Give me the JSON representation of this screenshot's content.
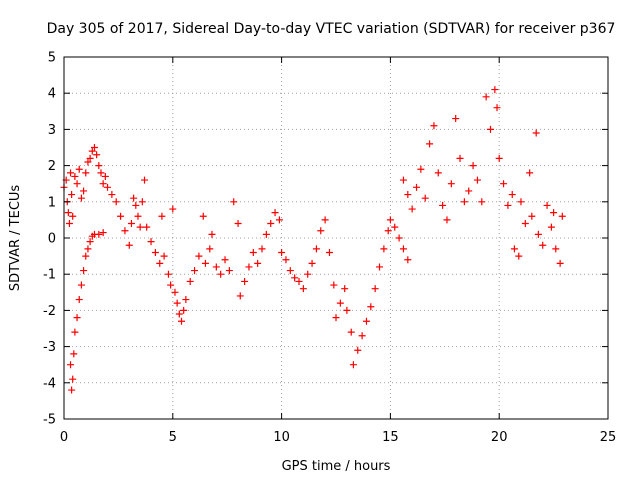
{
  "chart_data": {
    "type": "scatter",
    "title": "Day 305 of 2017, Sidereal Day-to-day VTEC variation (SDTVAR) for receiver p367",
    "xlabel": "GPS time / hours",
    "ylabel": "SDTVAR / TECUs",
    "xlim": [
      0,
      25
    ],
    "ylim": [
      -5,
      5
    ],
    "x_ticks": [
      "0",
      "5",
      "10",
      "15",
      "20",
      "25"
    ],
    "y_ticks": [
      "-5",
      "-4",
      "-3",
      "-2",
      "-1",
      "0",
      "1",
      "2",
      "3",
      "4",
      "5"
    ],
    "grid": true,
    "marker": "+",
    "color": "#ff0000",
    "series": [
      {
        "name": "p367 SDTVAR",
        "points": [
          [
            0.0,
            1.4
          ],
          [
            0.1,
            1.6
          ],
          [
            0.15,
            1.0
          ],
          [
            0.2,
            0.7
          ],
          [
            0.25,
            0.4
          ],
          [
            0.3,
            1.8
          ],
          [
            0.35,
            1.2
          ],
          [
            0.4,
            0.6
          ],
          [
            0.3,
            -3.5
          ],
          [
            0.35,
            -4.2
          ],
          [
            0.4,
            -3.9
          ],
          [
            0.45,
            -3.2
          ],
          [
            0.5,
            -2.6
          ],
          [
            0.6,
            -2.2
          ],
          [
            0.7,
            -1.7
          ],
          [
            0.8,
            -1.3
          ],
          [
            0.9,
            -0.9
          ],
          [
            1.0,
            -0.5
          ],
          [
            1.1,
            -0.3
          ],
          [
            1.2,
            -0.1
          ],
          [
            1.3,
            0.05
          ],
          [
            1.4,
            0.1
          ],
          [
            1.6,
            0.1
          ],
          [
            1.8,
            0.15
          ],
          [
            0.5,
            1.7
          ],
          [
            0.6,
            1.5
          ],
          [
            0.7,
            1.9
          ],
          [
            0.8,
            1.1
          ],
          [
            0.9,
            1.3
          ],
          [
            1.0,
            1.8
          ],
          [
            1.1,
            2.1
          ],
          [
            1.2,
            2.2
          ],
          [
            1.3,
            2.4
          ],
          [
            1.4,
            2.5
          ],
          [
            1.5,
            2.3
          ],
          [
            1.6,
            2.0
          ],
          [
            1.7,
            1.8
          ],
          [
            1.8,
            1.5
          ],
          [
            1.9,
            1.7
          ],
          [
            2.0,
            1.4
          ],
          [
            2.2,
            1.2
          ],
          [
            2.4,
            1.0
          ],
          [
            2.6,
            0.6
          ],
          [
            2.8,
            0.2
          ],
          [
            3.0,
            -0.2
          ],
          [
            3.1,
            0.4
          ],
          [
            3.2,
            1.1
          ],
          [
            3.3,
            0.9
          ],
          [
            3.4,
            0.6
          ],
          [
            3.5,
            0.3
          ],
          [
            3.6,
            1.0
          ],
          [
            3.7,
            1.6
          ],
          [
            3.8,
            0.3
          ],
          [
            4.0,
            -0.1
          ],
          [
            4.2,
            -0.4
          ],
          [
            4.4,
            -0.7
          ],
          [
            4.5,
            0.6
          ],
          [
            4.6,
            -0.5
          ],
          [
            4.8,
            -1.0
          ],
          [
            4.9,
            -1.3
          ],
          [
            5.0,
            0.8
          ],
          [
            5.1,
            -1.5
          ],
          [
            5.2,
            -1.8
          ],
          [
            5.3,
            -2.1
          ],
          [
            5.4,
            -2.3
          ],
          [
            5.5,
            -2.0
          ],
          [
            5.6,
            -1.7
          ],
          [
            5.8,
            -1.2
          ],
          [
            6.0,
            -0.9
          ],
          [
            6.2,
            -0.5
          ],
          [
            6.4,
            0.6
          ],
          [
            6.5,
            -0.7
          ],
          [
            6.7,
            -0.3
          ],
          [
            6.8,
            0.1
          ],
          [
            7.0,
            -0.8
          ],
          [
            7.2,
            -1.0
          ],
          [
            7.4,
            -0.6
          ],
          [
            7.6,
            -0.9
          ],
          [
            7.8,
            1.0
          ],
          [
            8.0,
            0.4
          ],
          [
            8.1,
            -1.6
          ],
          [
            8.3,
            -1.2
          ],
          [
            8.5,
            -0.8
          ],
          [
            8.7,
            -0.4
          ],
          [
            8.9,
            -0.7
          ],
          [
            9.1,
            -0.3
          ],
          [
            9.3,
            0.1
          ],
          [
            9.5,
            0.4
          ],
          [
            9.7,
            0.7
          ],
          [
            9.9,
            0.5
          ],
          [
            10.0,
            -0.4
          ],
          [
            10.2,
            -0.6
          ],
          [
            10.4,
            -0.9
          ],
          [
            10.6,
            -1.1
          ],
          [
            10.8,
            -1.2
          ],
          [
            11.0,
            -1.4
          ],
          [
            11.2,
            -1.0
          ],
          [
            11.4,
            -0.7
          ],
          [
            11.6,
            -0.3
          ],
          [
            11.8,
            0.2
          ],
          [
            12.0,
            0.5
          ],
          [
            12.2,
            -0.4
          ],
          [
            12.4,
            -1.3
          ],
          [
            12.5,
            -2.2
          ],
          [
            12.7,
            -1.8
          ],
          [
            12.9,
            -1.4
          ],
          [
            13.0,
            -2.0
          ],
          [
            13.2,
            -2.6
          ],
          [
            13.3,
            -3.5
          ],
          [
            13.5,
            -3.1
          ],
          [
            13.7,
            -2.7
          ],
          [
            13.9,
            -2.3
          ],
          [
            14.1,
            -1.9
          ],
          [
            14.3,
            -1.4
          ],
          [
            14.5,
            -0.8
          ],
          [
            14.7,
            -0.3
          ],
          [
            14.9,
            0.2
          ],
          [
            15.0,
            0.5
          ],
          [
            15.2,
            0.3
          ],
          [
            15.4,
            0.0
          ],
          [
            15.6,
            -0.3
          ],
          [
            15.8,
            -0.6
          ],
          [
            15.6,
            1.6
          ],
          [
            15.8,
            1.2
          ],
          [
            16.0,
            0.8
          ],
          [
            16.2,
            1.4
          ],
          [
            16.4,
            1.9
          ],
          [
            16.6,
            1.1
          ],
          [
            16.8,
            2.6
          ],
          [
            17.0,
            3.1
          ],
          [
            17.2,
            1.8
          ],
          [
            17.4,
            0.9
          ],
          [
            17.6,
            0.5
          ],
          [
            17.8,
            1.5
          ],
          [
            18.0,
            3.3
          ],
          [
            18.2,
            2.2
          ],
          [
            18.4,
            1.0
          ],
          [
            18.6,
            1.3
          ],
          [
            18.8,
            2.0
          ],
          [
            19.0,
            1.6
          ],
          [
            19.2,
            1.0
          ],
          [
            19.4,
            3.9
          ],
          [
            19.6,
            3.0
          ],
          [
            19.8,
            4.1
          ],
          [
            19.9,
            3.6
          ],
          [
            20.0,
            2.2
          ],
          [
            20.2,
            1.5
          ],
          [
            20.4,
            0.9
          ],
          [
            20.6,
            1.2
          ],
          [
            20.7,
            -0.3
          ],
          [
            20.9,
            -0.5
          ],
          [
            21.0,
            1.0
          ],
          [
            21.2,
            0.4
          ],
          [
            21.4,
            1.8
          ],
          [
            21.5,
            0.6
          ],
          [
            21.7,
            2.9
          ],
          [
            21.8,
            0.1
          ],
          [
            22.0,
            -0.2
          ],
          [
            22.2,
            0.9
          ],
          [
            22.4,
            0.3
          ],
          [
            22.5,
            0.7
          ],
          [
            22.6,
            -0.3
          ],
          [
            22.8,
            -0.7
          ],
          [
            22.9,
            0.6
          ]
        ]
      }
    ]
  }
}
